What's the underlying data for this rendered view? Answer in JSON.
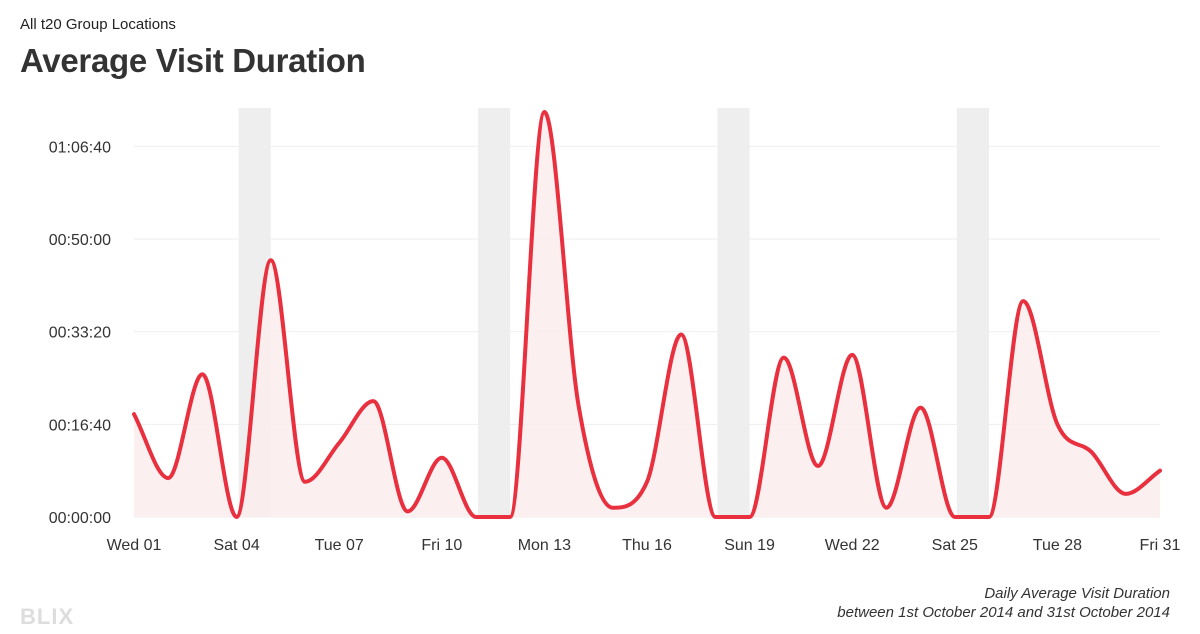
{
  "header": {
    "subtitle": "All t20 Group Locations",
    "title": "Average Visit Duration"
  },
  "footer": {
    "caption_line1": "Daily Average Visit Duration",
    "caption_line2": "between 1st October 2014 and 31st October 2014",
    "logo": "BLIX"
  },
  "colors": {
    "line": "#e8303f",
    "area": "#fcecec",
    "weekend_band": "#eeeeee",
    "grid": "#eeeeee"
  },
  "chart_data": {
    "type": "area",
    "title": "Average Visit Duration",
    "subtitle": "All t20 Group Locations",
    "xlabel": "",
    "ylabel": "",
    "grid": true,
    "x": [
      "2014-10-01",
      "2014-10-02",
      "2014-10-03",
      "2014-10-04",
      "2014-10-05",
      "2014-10-06",
      "2014-10-07",
      "2014-10-08",
      "2014-10-09",
      "2014-10-10",
      "2014-10-11",
      "2014-10-12",
      "2014-10-13",
      "2014-10-14",
      "2014-10-15",
      "2014-10-16",
      "2014-10-17",
      "2014-10-18",
      "2014-10-19",
      "2014-10-20",
      "2014-10-21",
      "2014-10-22",
      "2014-10-23",
      "2014-10-24",
      "2014-10-25",
      "2014-10-26",
      "2014-10-27",
      "2014-10-28",
      "2014-10-29",
      "2014-10-30",
      "2014-10-31"
    ],
    "series": [
      {
        "values_seconds": [
          1110,
          420,
          1540,
          0,
          2770,
          380,
          800,
          1250,
          60,
          640,
          0,
          0,
          4370,
          1200,
          100,
          380,
          1970,
          0,
          0,
          1720,
          550,
          1750,
          100,
          1180,
          0,
          0,
          2330,
          1000,
          700,
          250,
          500
        ]
      }
    ],
    "ylim_seconds": [
      0,
      4500
    ],
    "yticks_seconds": [
      0,
      1000,
      2000,
      3000,
      4000
    ],
    "ytick_labels": [
      "00:00:00",
      "00:16:40",
      "00:33:20",
      "00:50:00",
      "01:06:40"
    ],
    "xtick_labels": [
      {
        "date": "2014-10-01",
        "label": "Wed 01"
      },
      {
        "date": "2014-10-04",
        "label": "Sat 04"
      },
      {
        "date": "2014-10-07",
        "label": "Tue 07"
      },
      {
        "date": "2014-10-10",
        "label": "Fri 10"
      },
      {
        "date": "2014-10-13",
        "label": "Mon 13"
      },
      {
        "date": "2014-10-16",
        "label": "Thu 16"
      },
      {
        "date": "2014-10-19",
        "label": "Sun 19"
      },
      {
        "date": "2014-10-22",
        "label": "Wed 22"
      },
      {
        "date": "2014-10-25",
        "label": "Sat 25"
      },
      {
        "date": "2014-10-28",
        "label": "Tue 28"
      },
      {
        "date": "2014-10-31",
        "label": "Fri 31"
      }
    ],
    "weekend_bands": [
      {
        "from": "2014-10-04",
        "to": "2014-10-05"
      },
      {
        "from": "2014-10-11",
        "to": "2014-10-12"
      },
      {
        "from": "2014-10-18",
        "to": "2014-10-19"
      },
      {
        "from": "2014-10-25",
        "to": "2014-10-26"
      }
    ]
  }
}
